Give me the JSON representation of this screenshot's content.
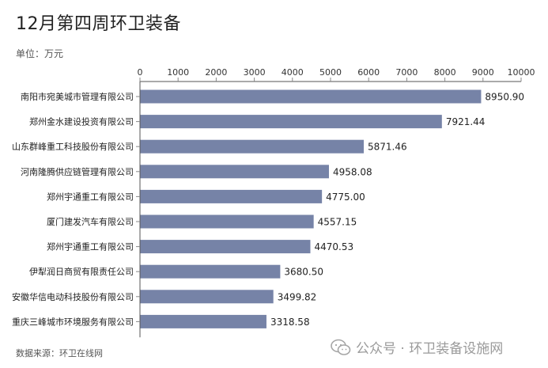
{
  "title": "12月第四周环卫装备",
  "unit_label": "单位：万元",
  "source": "数据来源：环卫在线网",
  "watermark": "公众号 · 环卫装备设施网",
  "colors": {
    "bar": "#7683a7",
    "axis": "#555555",
    "tick": "#888888"
  },
  "chart_data": {
    "type": "bar",
    "orientation": "horizontal",
    "categories": [
      "南阳市宛美城市管理有限公司",
      "郑州金水建设投资有限公司",
      "山东群峰重工科技股份有限公司",
      "河南隆腾供应链管理有限公司",
      "郑州宇通重工有限公司",
      "厦门建发汽车有限公司",
      "郑州宇通重工有限公司",
      "伊犁润日商贸有限责任公司",
      "安徽华信电动科技股份有限公司",
      "重庆三峰城市环境服务有限公司"
    ],
    "values": [
      8950.9,
      7921.44,
      5871.46,
      4958.08,
      4775.0,
      4557.15,
      4470.53,
      3680.5,
      3499.82,
      3318.58
    ],
    "value_labels": [
      "8950.90",
      "7921.44",
      "5871.46",
      "4958.08",
      "4775.00",
      "4557.15",
      "4470.53",
      "3680.50",
      "3499.82",
      "3318.58"
    ],
    "xlim": [
      0,
      10000
    ],
    "xticks": [
      0,
      1000,
      2000,
      3000,
      4000,
      5000,
      6000,
      7000,
      8000,
      9000,
      10000
    ],
    "axis_position": "top",
    "title": "12月第四周环卫装备",
    "xlabel": "",
    "ylabel": ""
  }
}
